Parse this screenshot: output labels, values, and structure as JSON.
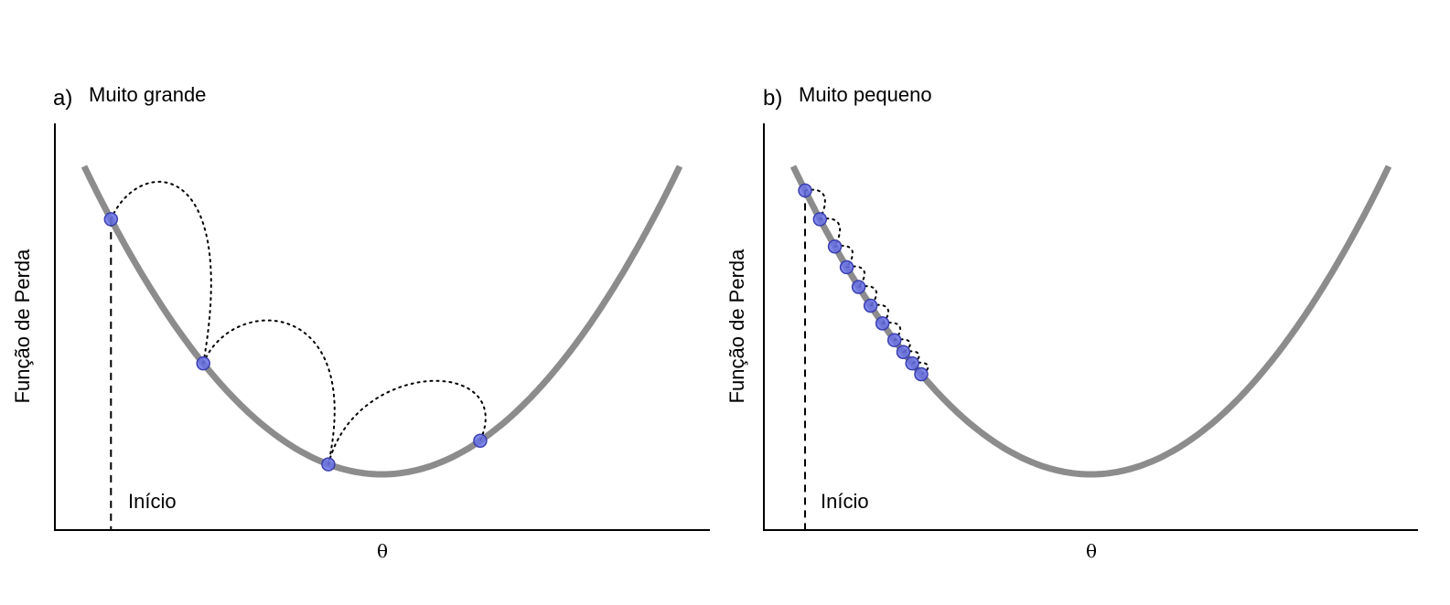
{
  "panels": [
    {
      "letter": "a)",
      "title": "Muito grande",
      "ylabel": "Função de Perda",
      "xlabel": "θ",
      "start_label": "Início",
      "steps_theta": [
        0.045,
        0.2,
        0.41,
        0.665
      ],
      "arc_style": "large-jump"
    },
    {
      "letter": "b)",
      "title": "Muito pequeno",
      "ylabel": "Função de Perda",
      "xlabel": "θ",
      "start_label": "Início",
      "steps_theta": [
        0.02,
        0.045,
        0.07,
        0.09,
        0.11,
        0.13,
        0.15,
        0.17,
        0.185,
        0.2,
        0.215
      ],
      "arc_style": "small-steps"
    }
  ],
  "colors": {
    "curve": "#8c8c8c",
    "point_fill": "#6a72e6",
    "point_stroke": "#3a3fb0",
    "axis": "#000000"
  }
}
